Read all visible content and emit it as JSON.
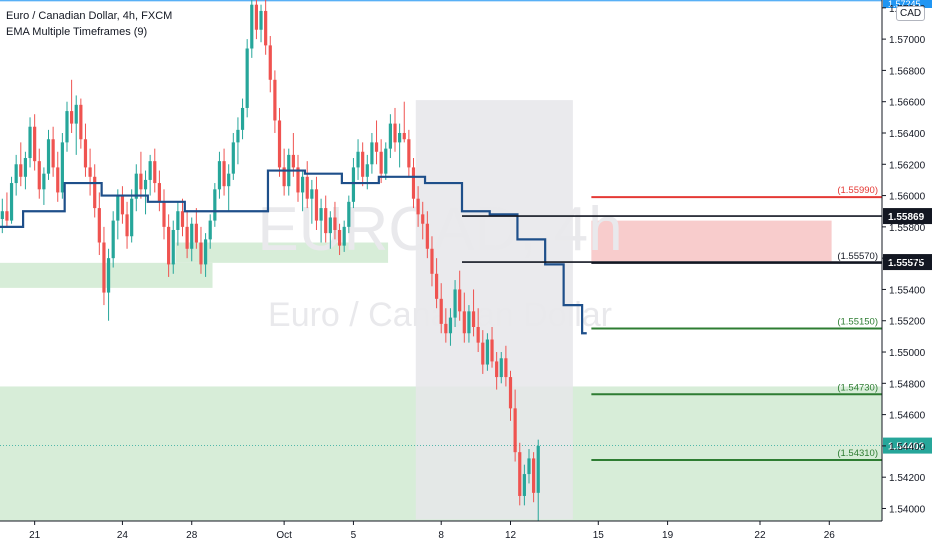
{
  "legend": {
    "title": "Euro / Canadian Dollar, 4h, FXCM",
    "indicator": "EMA Multiple Timeframes (9)"
  },
  "currency_badge": "CAD",
  "watermark": {
    "symbol": "EURCAD, 4h",
    "name": "Euro / Canadian Dollar"
  },
  "colors": {
    "up": "#26a69a",
    "down": "#ef5350",
    "ema": "#1e4f8a",
    "zone_green": "#d5ecd6",
    "zone_red": "#f8c9c9",
    "highlight": "#e6e6ea",
    "line_red": "#e53935",
    "line_green": "#2e7d32",
    "last_price_bg": "#26a69a"
  },
  "chart_data": {
    "type": "candlestick",
    "symbol": "EURCAD",
    "timeframe": "4h",
    "y_range": [
      1.5392,
      1.5725
    ],
    "y_ticks": [
      "1.57200",
      "1.57000",
      "1.56800",
      "1.56600",
      "1.56400",
      "1.56200",
      "1.56000",
      "1.55800",
      "1.55600",
      "1.55400",
      "1.55200",
      "1.55000",
      "1.54800",
      "1.54600",
      "1.54400",
      "1.54200",
      "1.54000"
    ],
    "x_ticks": [
      "21",
      "24",
      "28",
      "Oct",
      "5",
      "8",
      "12",
      "15",
      "19",
      "22",
      "26"
    ],
    "candles": [
      [
        1.5585,
        1.5598,
        1.5576,
        1.559
      ],
      [
        1.559,
        1.5602,
        1.558,
        1.5584
      ],
      [
        1.5584,
        1.5612,
        1.5582,
        1.5608
      ],
      [
        1.5608,
        1.5626,
        1.56,
        1.562
      ],
      [
        1.562,
        1.5634,
        1.5606,
        1.5612
      ],
      [
        1.5612,
        1.5628,
        1.5604,
        1.5624
      ],
      [
        1.5624,
        1.565,
        1.5618,
        1.5644
      ],
      [
        1.5644,
        1.5652,
        1.5616,
        1.5622
      ],
      [
        1.5622,
        1.563,
        1.5598,
        1.5604
      ],
      [
        1.5604,
        1.5618,
        1.5594,
        1.5614
      ],
      [
        1.5614,
        1.5642,
        1.561,
        1.5636
      ],
      [
        1.5636,
        1.5644,
        1.5612,
        1.5618
      ],
      [
        1.5618,
        1.5628,
        1.5596,
        1.5602
      ],
      [
        1.5602,
        1.564,
        1.5598,
        1.5634
      ],
      [
        1.5634,
        1.566,
        1.5628,
        1.5654
      ],
      [
        1.5654,
        1.5674,
        1.564,
        1.5646
      ],
      [
        1.5646,
        1.5664,
        1.5626,
        1.5658
      ],
      [
        1.5658,
        1.5662,
        1.563,
        1.5636
      ],
      [
        1.5636,
        1.5646,
        1.5612,
        1.5618
      ],
      [
        1.5618,
        1.563,
        1.56,
        1.5612
      ],
      [
        1.5612,
        1.562,
        1.5586,
        1.5592
      ],
      [
        1.5592,
        1.5602,
        1.5562,
        1.557
      ],
      [
        1.557,
        1.558,
        1.553,
        1.5538
      ],
      [
        1.5538,
        1.5566,
        1.552,
        1.556
      ],
      [
        1.556,
        1.559,
        1.5554,
        1.5584
      ],
      [
        1.5584,
        1.5604,
        1.5572,
        1.56
      ],
      [
        1.56,
        1.5606,
        1.5582,
        1.5588
      ],
      [
        1.5588,
        1.5596,
        1.5566,
        1.5574
      ],
      [
        1.5574,
        1.5604,
        1.557,
        1.5598
      ],
      [
        1.5598,
        1.562,
        1.559,
        1.5614
      ],
      [
        1.5614,
        1.5628,
        1.5598,
        1.5604
      ],
      [
        1.5604,
        1.5616,
        1.5588,
        1.561
      ],
      [
        1.561,
        1.5626,
        1.56,
        1.5622
      ],
      [
        1.5622,
        1.563,
        1.5602,
        1.5608
      ],
      [
        1.5608,
        1.5616,
        1.559,
        1.5596
      ],
      [
        1.5596,
        1.5604,
        1.5572,
        1.558
      ],
      [
        1.558,
        1.5588,
        1.5548,
        1.5556
      ],
      [
        1.5556,
        1.5584,
        1.555,
        1.5578
      ],
      [
        1.5578,
        1.5596,
        1.5568,
        1.559
      ],
      [
        1.559,
        1.5598,
        1.5574,
        1.558
      ],
      [
        1.558,
        1.559,
        1.556,
        1.5566
      ],
      [
        1.5566,
        1.5586,
        1.5558,
        1.5582
      ],
      [
        1.5582,
        1.5592,
        1.5566,
        1.557
      ],
      [
        1.557,
        1.558,
        1.555,
        1.5556
      ],
      [
        1.5556,
        1.5576,
        1.5548,
        1.5572
      ],
      [
        1.5572,
        1.5588,
        1.5566,
        1.5584
      ],
      [
        1.5584,
        1.5608,
        1.558,
        1.5604
      ],
      [
        1.5604,
        1.5628,
        1.5598,
        1.5622
      ],
      [
        1.5622,
        1.563,
        1.56,
        1.5606
      ],
      [
        1.5606,
        1.562,
        1.559,
        1.5614
      ],
      [
        1.5614,
        1.564,
        1.561,
        1.5634
      ],
      [
        1.5634,
        1.565,
        1.562,
        1.5642
      ],
      [
        1.5642,
        1.5662,
        1.5636,
        1.5656
      ],
      [
        1.5656,
        1.57,
        1.565,
        1.5694
      ],
      [
        1.5694,
        1.5728,
        1.5688,
        1.5722
      ],
      [
        1.5722,
        1.5726,
        1.57,
        1.5706
      ],
      [
        1.5706,
        1.5722,
        1.5698,
        1.5718
      ],
      [
        1.5718,
        1.5726,
        1.569,
        1.5696
      ],
      [
        1.5696,
        1.5702,
        1.5666,
        1.5674
      ],
      [
        1.5674,
        1.568,
        1.564,
        1.5648
      ],
      [
        1.5648,
        1.5656,
        1.5612,
        1.5618
      ],
      [
        1.5618,
        1.563,
        1.56,
        1.5606
      ],
      [
        1.5606,
        1.563,
        1.56,
        1.5626
      ],
      [
        1.5626,
        1.564,
        1.5612,
        1.5618
      ],
      [
        1.5618,
        1.5626,
        1.5596,
        1.5602
      ],
      [
        1.5602,
        1.5616,
        1.559,
        1.5612
      ],
      [
        1.5612,
        1.5622,
        1.5592,
        1.5598
      ],
      [
        1.5598,
        1.561,
        1.5582,
        1.5604
      ],
      [
        1.5604,
        1.5612,
        1.5578,
        1.5584
      ],
      [
        1.5584,
        1.5598,
        1.557,
        1.5592
      ],
      [
        1.5592,
        1.56,
        1.557,
        1.5576
      ],
      [
        1.5576,
        1.559,
        1.5566,
        1.5586
      ],
      [
        1.5586,
        1.5596,
        1.5572,
        1.5578
      ],
      [
        1.5578,
        1.5582,
        1.5562,
        1.5568
      ],
      [
        1.5568,
        1.5584,
        1.5564,
        1.558
      ],
      [
        1.558,
        1.56,
        1.5576,
        1.5596
      ],
      [
        1.5596,
        1.5624,
        1.5592,
        1.5618
      ],
      [
        1.5618,
        1.5636,
        1.561,
        1.5628
      ],
      [
        1.5628,
        1.5634,
        1.5606,
        1.5612
      ],
      [
        1.5612,
        1.5626,
        1.5604,
        1.562
      ],
      [
        1.562,
        1.564,
        1.5614,
        1.5634
      ],
      [
        1.5634,
        1.5648,
        1.562,
        1.5628
      ],
      [
        1.5628,
        1.5636,
        1.5608,
        1.5614
      ],
      [
        1.5614,
        1.5634,
        1.561,
        1.563
      ],
      [
        1.563,
        1.5652,
        1.5624,
        1.5646
      ],
      [
        1.5646,
        1.5656,
        1.5628,
        1.5634
      ],
      [
        1.5634,
        1.5646,
        1.5618,
        1.564
      ],
      [
        1.564,
        1.566,
        1.5634,
        1.5636
      ],
      [
        1.5636,
        1.5642,
        1.5612,
        1.5618
      ],
      [
        1.5618,
        1.5624,
        1.5592,
        1.5598
      ],
      [
        1.5598,
        1.5606,
        1.558,
        1.5588
      ],
      [
        1.5588,
        1.5596,
        1.5572,
        1.5582
      ],
      [
        1.5582,
        1.559,
        1.556,
        1.5566
      ],
      [
        1.5566,
        1.5574,
        1.5542,
        1.555
      ],
      [
        1.555,
        1.556,
        1.5528,
        1.5534
      ],
      [
        1.5534,
        1.5544,
        1.5512,
        1.5518
      ],
      [
        1.5518,
        1.5528,
        1.5506,
        1.5512
      ],
      [
        1.5512,
        1.5528,
        1.5504,
        1.5522
      ],
      [
        1.5522,
        1.5546,
        1.5516,
        1.554
      ],
      [
        1.554,
        1.5552,
        1.552,
        1.5526
      ],
      [
        1.5526,
        1.5538,
        1.5506,
        1.5512
      ],
      [
        1.5512,
        1.553,
        1.5506,
        1.5526
      ],
      [
        1.5526,
        1.554,
        1.551,
        1.5516
      ],
      [
        1.5516,
        1.5528,
        1.55,
        1.5506
      ],
      [
        1.5506,
        1.5514,
        1.5486,
        1.5492
      ],
      [
        1.5492,
        1.5512,
        1.5488,
        1.5508
      ],
      [
        1.5508,
        1.5516,
        1.549,
        1.5494
      ],
      [
        1.5494,
        1.55,
        1.5476,
        1.5484
      ],
      [
        1.5484,
        1.55,
        1.548,
        1.5496
      ],
      [
        1.5496,
        1.5504,
        1.5478,
        1.5484
      ],
      [
        1.5484,
        1.5488,
        1.5456,
        1.5464
      ],
      [
        1.5464,
        1.5476,
        1.543,
        1.5436
      ],
      [
        1.5436,
        1.5442,
        1.5402,
        1.5408
      ],
      [
        1.5408,
        1.5428,
        1.5402,
        1.5422
      ],
      [
        1.5422,
        1.5438,
        1.5416,
        1.5432
      ],
      [
        1.5432,
        1.5436,
        1.5404,
        1.541
      ],
      [
        1.541,
        1.5444,
        1.5392,
        1.544
      ]
    ],
    "ema_steps": [
      {
        "x0": 0,
        "x1": 5,
        "v": 1.558
      },
      {
        "x0": 5,
        "x1": 14,
        "v": 1.559
      },
      {
        "x0": 14,
        "x1": 22,
        "v": 1.5608
      },
      {
        "x0": 22,
        "x1": 32,
        "v": 1.56
      },
      {
        "x0": 32,
        "x1": 40,
        "v": 1.5596
      },
      {
        "x0": 40,
        "x1": 50,
        "v": 1.559
      },
      {
        "x0": 50,
        "x1": 58,
        "v": 1.559
      },
      {
        "x0": 58,
        "x1": 66,
        "v": 1.5616
      },
      {
        "x0": 66,
        "x1": 74,
        "v": 1.5614
      },
      {
        "x0": 74,
        "x1": 82,
        "v": 1.5608
      },
      {
        "x0": 82,
        "x1": 92,
        "v": 1.5612
      },
      {
        "x0": 92,
        "x1": 100,
        "v": 1.5608
      },
      {
        "x0": 100,
        "x1": 106,
        "v": 1.559
      },
      {
        "x0": 106,
        "x1": 112,
        "v": 1.5588
      },
      {
        "x0": 112,
        "x1": 118,
        "v": 1.5572
      },
      {
        "x0": 118,
        "x1": 122,
        "v": 1.5556
      },
      {
        "x0": 122,
        "x1": 126,
        "v": 1.553
      },
      {
        "x0": 126,
        "x1": 127,
        "v": 1.5512
      }
    ],
    "zones": [
      {
        "name": "support-zone-left",
        "from": 0,
        "to": 46,
        "low": 1.5541,
        "high": 1.5557,
        "color": "zone_green"
      },
      {
        "name": "support-zone-mid",
        "from": 38,
        "to": 84,
        "low": 1.5557,
        "high": 1.557,
        "color": "zone_green"
      },
      {
        "name": "demand-zone-wide",
        "from": 0,
        "to": 193,
        "low": 1.5392,
        "high": 1.5478,
        "color": "zone_green"
      },
      {
        "name": "supply-zone",
        "from": 128,
        "to": 180,
        "low": 1.5558,
        "high": 1.5584,
        "color": "zone_red"
      },
      {
        "name": "highlight-period",
        "from": 90,
        "to": 124,
        "low": 1.5393,
        "high": 1.5661,
        "color": "highlight"
      }
    ],
    "levels": [
      {
        "label": "(1.55990)",
        "value": 1.5599,
        "color": "line_red"
      },
      {
        "label": "(1.55570)",
        "value": 1.5557,
        "color": "#131722"
      },
      {
        "label": "(1.55150)",
        "value": 1.5515,
        "color": "line_green"
      },
      {
        "label": "(1.54730)",
        "value": 1.5473,
        "color": "line_green"
      },
      {
        "label": "(1.54310)",
        "value": 1.5431,
        "color": "line_green"
      }
    ],
    "black_lines": [
      {
        "value": 1.55869,
        "label": "1.55869",
        "from": 100
      },
      {
        "value": 1.55575,
        "label": "1.55575",
        "from": 100
      }
    ],
    "last_price": {
      "value": 1.54402,
      "label": "1.54402"
    },
    "top_price": {
      "value": 1.57245,
      "label": "1.57245"
    }
  }
}
